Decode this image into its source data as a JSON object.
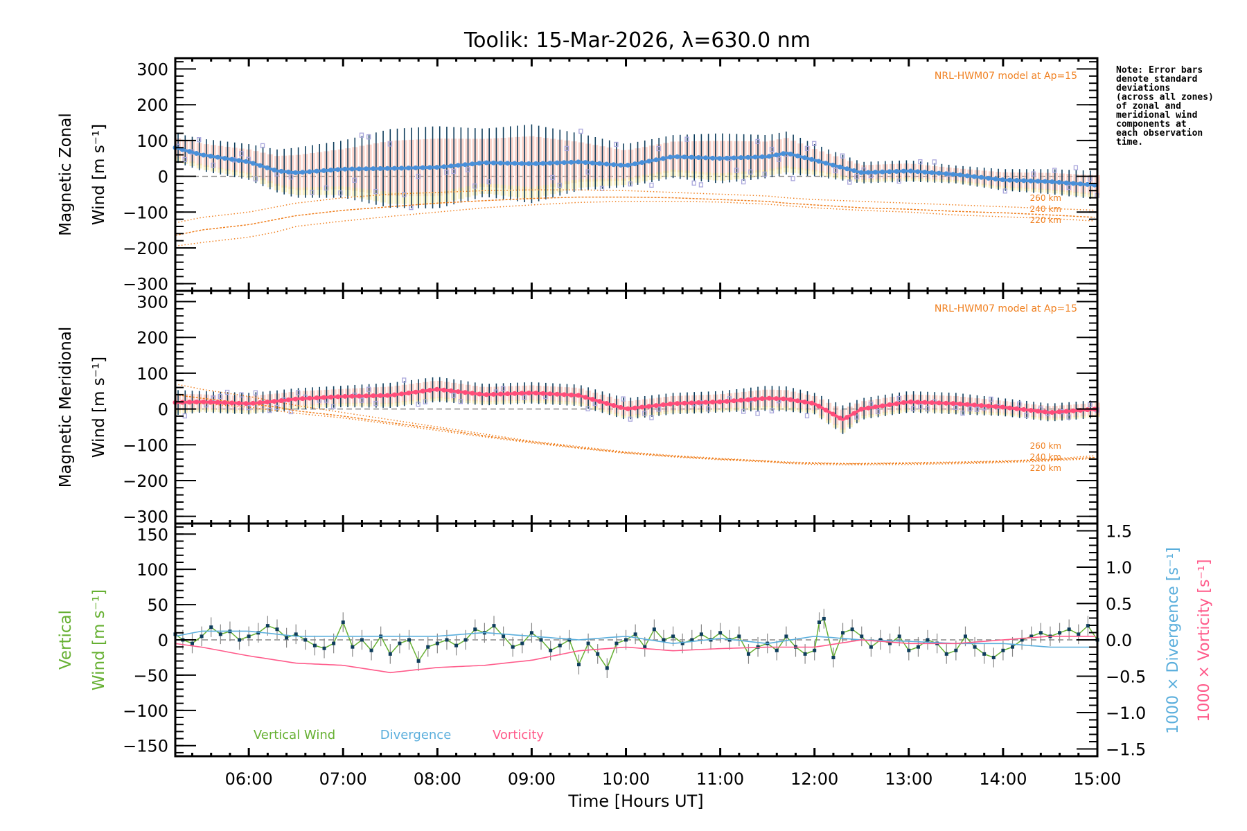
{
  "chart_data": [
    {
      "type": "line",
      "panel": "zonal",
      "title": "Toolik: 15-Mar-2026, λ=630.0 nm",
      "ylabel_line1": "Magnetic Zonal",
      "ylabel_line2": "Wind [m s⁻¹]",
      "ylim": [
        -320,
        330
      ],
      "yticks": [
        -300,
        -200,
        -100,
        0,
        100,
        200,
        300
      ],
      "model_label": "NRL-HWM07 model at Ap=15",
      "model_altitudes": [
        "260 km",
        "240 km",
        "220 km"
      ],
      "x_hours": [
        5.22,
        5.5,
        6.0,
        6.3,
        6.5,
        7.0,
        7.5,
        8.0,
        8.5,
        9.0,
        9.5,
        10.0,
        10.5,
        11.0,
        11.5,
        11.7,
        12.0,
        12.5,
        13.0,
        13.5,
        14.0,
        14.5,
        15.0
      ],
      "series": [
        {
          "name": "Mean zonal wind",
          "color": "#4a90d9",
          "values": [
            80,
            60,
            40,
            15,
            10,
            20,
            22,
            25,
            38,
            35,
            40,
            30,
            55,
            50,
            55,
            65,
            45,
            10,
            15,
            5,
            -10,
            -15,
            -25
          ]
        },
        {
          "name": "Std dev (error bar half-width)",
          "color": "#0e3d5c",
          "values": [
            40,
            45,
            50,
            60,
            70,
            80,
            110,
            115,
            95,
            110,
            80,
            60,
            60,
            70,
            60,
            60,
            45,
            30,
            30,
            25,
            30,
            35,
            40
          ]
        },
        {
          "name": "HWM07 260 km",
          "color": "#f08020",
          "values": [
            -130,
            -115,
            -100,
            -85,
            -75,
            -60,
            -50,
            -45,
            -40,
            -38,
            -38,
            -40,
            -45,
            -50,
            -55,
            -60,
            -65,
            -70,
            -75,
            -80,
            -85,
            -90,
            -95
          ]
        },
        {
          "name": "HWM07 240 km",
          "color": "#f08020",
          "values": [
            -165,
            -150,
            -135,
            -120,
            -110,
            -95,
            -85,
            -75,
            -68,
            -62,
            -58,
            -58,
            -60,
            -65,
            -70,
            -75,
            -80,
            -88,
            -92,
            -98,
            -102,
            -108,
            -115
          ]
        },
        {
          "name": "HWM07 220 km",
          "color": "#f08020",
          "values": [
            -195,
            -185,
            -170,
            -155,
            -140,
            -125,
            -112,
            -100,
            -88,
            -80,
            -73,
            -70,
            -70,
            -72,
            -78,
            -82,
            -88,
            -95,
            -100,
            -108,
            -113,
            -118,
            -125
          ]
        }
      ]
    },
    {
      "type": "line",
      "panel": "meridional",
      "ylabel_line1": "Magnetic Meridional",
      "ylabel_line2": "Wind [m s⁻¹]",
      "ylim": [
        -320,
        330
      ],
      "yticks": [
        -300,
        -200,
        -100,
        0,
        100,
        200,
        300
      ],
      "model_label": "NRL-HWM07 model at Ap=15",
      "model_altitudes": [
        "260 km",
        "240 km",
        "220 km"
      ],
      "x_hours": [
        5.22,
        5.5,
        6.0,
        6.3,
        6.5,
        7.0,
        7.5,
        8.0,
        8.5,
        9.0,
        9.5,
        10.0,
        10.5,
        11.0,
        11.5,
        11.7,
        12.0,
        12.3,
        12.5,
        13.0,
        13.5,
        14.0,
        14.5,
        15.0
      ],
      "series": [
        {
          "name": "Mean meridional wind",
          "color": "#ff4d7a",
          "values": [
            18,
            20,
            15,
            22,
            28,
            35,
            38,
            55,
            40,
            45,
            38,
            0,
            15,
            20,
            30,
            28,
            15,
            -30,
            0,
            20,
            15,
            5,
            -10,
            0
          ]
        },
        {
          "name": "Std dev (error bar half-width)",
          "color": "#0e3d5c",
          "values": [
            35,
            30,
            30,
            30,
            30,
            30,
            35,
            35,
            30,
            30,
            30,
            30,
            30,
            30,
            35,
            35,
            30,
            40,
            30,
            30,
            30,
            25,
            25,
            25
          ]
        },
        {
          "name": "HWM07 260 km",
          "color": "#f08020",
          "values": [
            70,
            55,
            35,
            20,
            10,
            -10,
            -30,
            -50,
            -70,
            -90,
            -105,
            -120,
            -130,
            -138,
            -145,
            -148,
            -150,
            -152,
            -152,
            -150,
            -148,
            -145,
            -140,
            -130
          ]
        },
        {
          "name": "HWM07 240 km",
          "color": "#f08020",
          "values": [
            40,
            30,
            15,
            5,
            -5,
            -20,
            -38,
            -55,
            -75,
            -92,
            -108,
            -122,
            -132,
            -140,
            -146,
            -150,
            -152,
            -153,
            -153,
            -152,
            -150,
            -147,
            -142,
            -135
          ]
        },
        {
          "name": "HWM07 220 km",
          "color": "#f08020",
          "values": [
            20,
            15,
            5,
            -5,
            -12,
            -25,
            -42,
            -60,
            -78,
            -95,
            -110,
            -124,
            -134,
            -142,
            -148,
            -152,
            -155,
            -156,
            -156,
            -155,
            -153,
            -150,
            -145,
            -138
          ]
        }
      ]
    },
    {
      "type": "line",
      "panel": "vertical",
      "xlabel": "Time [Hours UT]",
      "xlim_hours": [
        5.22,
        15.0
      ],
      "xticks_hours": [
        6,
        7,
        8,
        9,
        10,
        11,
        12,
        13,
        14,
        15
      ],
      "xtick_labels": [
        "06:00",
        "07:00",
        "08:00",
        "09:00",
        "10:00",
        "11:00",
        "12:00",
        "13:00",
        "14:00",
        "15:00"
      ],
      "ylabel_line1": "Vertical",
      "ylabel_line2": "Wind [m s⁻¹]",
      "ylim": [
        -165,
        165
      ],
      "yticks": [
        -150,
        -100,
        -50,
        0,
        50,
        100,
        150
      ],
      "y2label_div": "1000 × Divergence [s⁻¹]",
      "y2label_vort": "1000 × Vorticity [s⁻¹]",
      "y2lim": [
        -1.6,
        1.6
      ],
      "y2ticks": [
        -1.5,
        -1.0,
        -0.5,
        0.0,
        0.5,
        1.0,
        1.5
      ],
      "y2tick_labels": [
        "−1.5",
        "−1.0",
        "−0.5",
        "0.0",
        "0.5",
        "1.0",
        "1.5"
      ],
      "legend": [
        "Vertical Wind",
        "Divergence",
        "Vorticity"
      ],
      "legend_placement": "bottom-left",
      "series": [
        {
          "name": "Vertical Wind",
          "color": "#66b032",
          "axis": "left",
          "x_hours": [
            5.22,
            5.3,
            5.4,
            5.5,
            5.6,
            5.7,
            5.8,
            5.9,
            6.0,
            6.1,
            6.2,
            6.3,
            6.4,
            6.5,
            6.6,
            6.7,
            6.8,
            6.9,
            7.0,
            7.1,
            7.2,
            7.3,
            7.4,
            7.5,
            7.6,
            7.7,
            7.8,
            7.9,
            8.0,
            8.1,
            8.2,
            8.3,
            8.4,
            8.5,
            8.6,
            8.7,
            8.8,
            8.9,
            9.0,
            9.1,
            9.2,
            9.3,
            9.4,
            9.5,
            9.6,
            9.7,
            9.8,
            9.9,
            10.0,
            10.1,
            10.2,
            10.3,
            10.4,
            10.5,
            10.6,
            10.7,
            10.8,
            10.9,
            11.0,
            11.1,
            11.2,
            11.3,
            11.4,
            11.5,
            11.6,
            11.7,
            11.8,
            11.9,
            12.0,
            12.05,
            12.1,
            12.2,
            12.3,
            12.4,
            12.5,
            12.6,
            12.7,
            12.8,
            12.9,
            13.0,
            13.1,
            13.2,
            13.3,
            13.4,
            13.5,
            13.6,
            13.7,
            13.8,
            13.9,
            14.0,
            14.1,
            14.2,
            14.3,
            14.4,
            14.5,
            14.6,
            14.7,
            14.8,
            14.9,
            15.0
          ],
          "values": [
            8,
            0,
            -5,
            5,
            18,
            8,
            12,
            0,
            5,
            10,
            20,
            15,
            3,
            8,
            0,
            -8,
            -12,
            -5,
            25,
            -10,
            0,
            -15,
            5,
            -20,
            -5,
            0,
            -30,
            -10,
            -5,
            0,
            -8,
            0,
            15,
            10,
            20,
            5,
            -10,
            -5,
            10,
            0,
            -15,
            -8,
            0,
            -35,
            -5,
            -20,
            -40,
            -5,
            0,
            8,
            -10,
            15,
            0,
            5,
            -5,
            0,
            8,
            0,
            10,
            0,
            5,
            -20,
            -10,
            -5,
            -15,
            5,
            -10,
            -20,
            -15,
            25,
            30,
            -25,
            10,
            15,
            5,
            -10,
            0,
            -5,
            5,
            -15,
            -10,
            0,
            -5,
            -20,
            -15,
            5,
            -10,
            -20,
            -25,
            -15,
            -10,
            0,
            5,
            10,
            5,
            10,
            15,
            8,
            20,
            0
          ]
        },
        {
          "name": "Divergence",
          "color": "#5aaedc",
          "axis": "right",
          "x_hours": [
            5.22,
            5.5,
            6.0,
            6.5,
            7.0,
            7.5,
            8.0,
            8.5,
            9.0,
            9.5,
            10.0,
            10.5,
            11.0,
            11.5,
            12.0,
            12.5,
            13.0,
            13.5,
            14.0,
            14.5,
            15.0
          ],
          "values": [
            0.05,
            0.12,
            0.12,
            0.05,
            0.05,
            0.05,
            0.05,
            0.1,
            0.05,
            0.0,
            0.05,
            -0.05,
            0.02,
            -0.05,
            0.05,
            0.0,
            -0.02,
            -0.05,
            -0.05,
            -0.1,
            -0.1
          ]
        },
        {
          "name": "Vorticity",
          "color": "#ff5a8a",
          "axis": "right",
          "x_hours": [
            5.22,
            5.5,
            6.0,
            6.5,
            7.0,
            7.5,
            8.0,
            8.5,
            9.0,
            9.5,
            10.0,
            10.5,
            11.0,
            11.5,
            12.0,
            12.5,
            13.0,
            13.5,
            14.0,
            14.5,
            15.0
          ],
          "values": [
            -0.05,
            -0.1,
            -0.22,
            -0.32,
            -0.35,
            -0.45,
            -0.38,
            -0.35,
            -0.28,
            -0.15,
            -0.1,
            -0.15,
            -0.12,
            -0.1,
            -0.1,
            0.0,
            -0.05,
            -0.05,
            0.0,
            0.05,
            0.05
          ]
        }
      ]
    }
  ],
  "note_lines": [
    "Note: Error bars",
    "denote standard",
    "deviations",
    "(across all zones)",
    "of zonal and",
    "meridional wind",
    "components at",
    "each observation",
    "time."
  ],
  "colors": {
    "zonal": "#4a90d9",
    "meridional": "#ff4d7a",
    "vertical": "#66b032",
    "divergence": "#5aaedc",
    "vorticity": "#ff5a8a",
    "model": "#f08020",
    "errorbar": "#0e3d5c",
    "zone_points": "#a9a6dc"
  }
}
